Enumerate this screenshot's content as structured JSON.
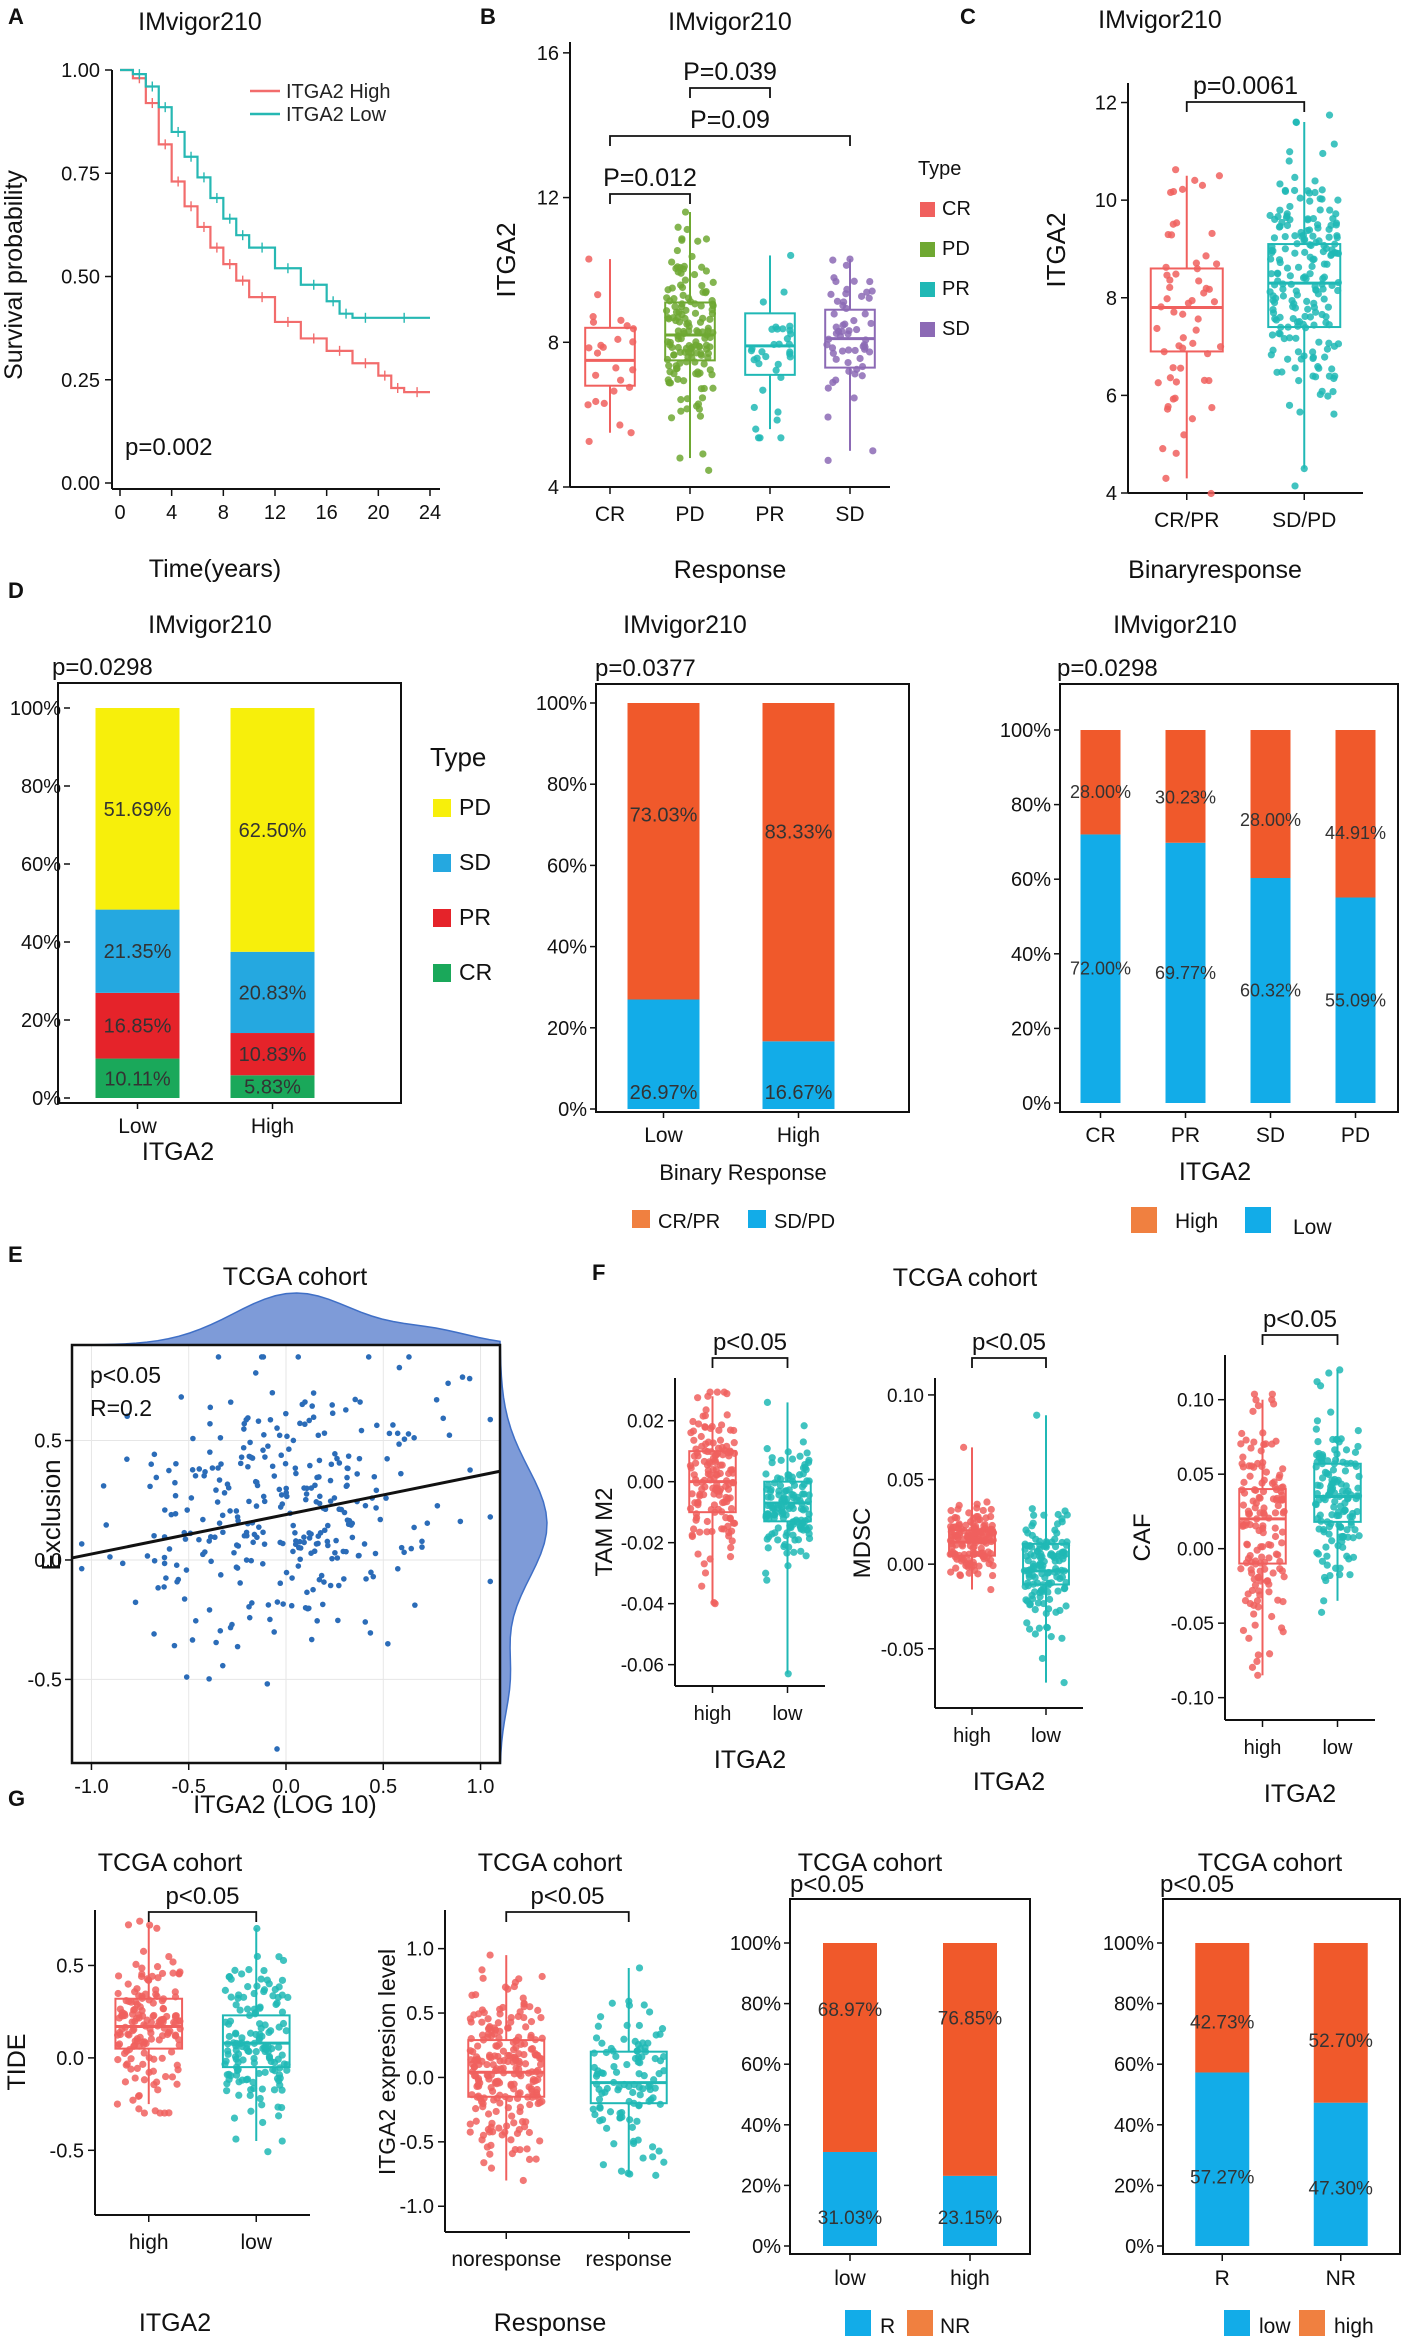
{
  "colors": {
    "red": "#f0605e",
    "teal": "#20b8b5",
    "green": "#6fa832",
    "purple": "#8c6ab5",
    "orange": "#f0592b",
    "blue": "#12ace8",
    "yellow": "#f7ef0b",
    "sdblue": "#25a8e0",
    "prred": "#e5232a",
    "crgreen": "#1aa85a",
    "legorange": "#f08040",
    "km_red": "#f26c6c",
    "km_teal": "#26b8b3"
  },
  "panels": {
    "A": "A",
    "B": "B",
    "C": "C",
    "D": "D",
    "E": "E",
    "F": "F",
    "G": "G"
  },
  "chart_data": [
    {
      "id": "A",
      "type": "line",
      "title": "IMvigor210",
      "xlabel": "Time(years)",
      "ylabel": "Survival probability",
      "xticks": [
        "0",
        "4",
        "8",
        "12",
        "16",
        "20",
        "24"
      ],
      "yticks": [
        "0.00",
        "0.25",
        "0.50",
        "0.75",
        "1.00"
      ],
      "xlim": [
        0,
        24
      ],
      "ylim": [
        0,
        1
      ],
      "annotation": "p=0.002",
      "series": [
        {
          "name": "ITGA2 High",
          "color": "red",
          "x": [
            0,
            1,
            2,
            3,
            4,
            5,
            6,
            7,
            8,
            9,
            10,
            12,
            14,
            16,
            18,
            20,
            21,
            22,
            24
          ],
          "y": [
            1.0,
            0.98,
            0.92,
            0.82,
            0.73,
            0.67,
            0.62,
            0.57,
            0.53,
            0.49,
            0.45,
            0.39,
            0.35,
            0.32,
            0.29,
            0.26,
            0.23,
            0.22,
            0.22
          ]
        },
        {
          "name": "ITGA2 Low",
          "color": "teal",
          "x": [
            0,
            1,
            2,
            3,
            4,
            5,
            6,
            7,
            8,
            9,
            10,
            12,
            14,
            16,
            17,
            18,
            20,
            24
          ],
          "y": [
            1.0,
            0.99,
            0.96,
            0.91,
            0.85,
            0.79,
            0.74,
            0.69,
            0.64,
            0.6,
            0.57,
            0.52,
            0.48,
            0.44,
            0.41,
            0.4,
            0.4,
            0.4
          ]
        }
      ]
    },
    {
      "id": "B",
      "type": "box",
      "title": "IMvigor210",
      "xlabel": "Response",
      "ylabel": "ITGA2",
      "legend_title": "Type",
      "categories": [
        "CR",
        "PD",
        "PR",
        "SD"
      ],
      "yticks": [
        "4",
        "8",
        "12",
        "16"
      ],
      "ylim": [
        4,
        16.3
      ],
      "boxes": [
        {
          "q1": 6.8,
          "med": 7.5,
          "q3": 8.4,
          "lo": 5.5,
          "hi": 10.3,
          "color": "red",
          "n": 25
        },
        {
          "q1": 7.5,
          "med": 8.2,
          "q3": 9.1,
          "lo": 4.8,
          "hi": 11.6,
          "color": "green",
          "n": 150
        },
        {
          "q1": 7.1,
          "med": 7.9,
          "q3": 8.8,
          "lo": 5.6,
          "hi": 10.4,
          "color": "teal",
          "n": 35
        },
        {
          "q1": 7.3,
          "med": 8.1,
          "q3": 8.9,
          "lo": 5.0,
          "hi": 10.3,
          "color": "purple",
          "n": 60
        }
      ],
      "pvals": [
        "P=0.012",
        "P=0.039",
        "P=0.09"
      ]
    },
    {
      "id": "C",
      "type": "box",
      "title": "IMvigor210",
      "xlabel": "Binaryresponse",
      "ylabel": "ITGA2",
      "categories": [
        "CR/PR",
        "SD/PD"
      ],
      "yticks": [
        "4",
        "6",
        "8",
        "10",
        "12"
      ],
      "ylim": [
        4,
        12.4
      ],
      "boxes": [
        {
          "q1": 6.9,
          "med": 7.8,
          "q3": 8.6,
          "lo": 4.3,
          "hi": 10.5,
          "color": "red",
          "n": 60
        },
        {
          "q1": 7.4,
          "med": 8.3,
          "q3": 9.1,
          "lo": 4.5,
          "hi": 11.6,
          "color": "teal",
          "n": 200
        }
      ],
      "pvals": [
        "p=0.0061"
      ]
    },
    {
      "id": "D1",
      "type": "bar",
      "title": "IMvigor210",
      "xlabel": "ITGA2",
      "pval": "p=0.0298",
      "legend_title": "Type",
      "categories": [
        "Low",
        "High"
      ],
      "yticks": [
        "0%",
        "20%",
        "40%",
        "60%",
        "80%",
        "100%"
      ],
      "series": [
        {
          "name": "CR",
          "color": "crgreen",
          "values": [
            10.11,
            5.83
          ]
        },
        {
          "name": "PR",
          "color": "prred",
          "values": [
            16.85,
            10.83
          ]
        },
        {
          "name": "SD",
          "color": "sdblue",
          "values": [
            21.35,
            20.83
          ]
        },
        {
          "name": "PD",
          "color": "yellow",
          "values": [
            51.69,
            62.5
          ]
        }
      ],
      "labels": [
        [
          "10.11%",
          "16.85%",
          "21.35%",
          "51.69%"
        ],
        [
          "5.83%",
          "10.83%",
          "20.83%",
          "62.50%"
        ]
      ],
      "legend": [
        "PD",
        "SD",
        "PR",
        "CR"
      ]
    },
    {
      "id": "D2",
      "type": "bar",
      "title": "IMvigor210",
      "xlabel": "Binary Response",
      "pval": "p=0.0377",
      "categories": [
        "Low",
        "High"
      ],
      "yticks": [
        "0%",
        "20%",
        "40%",
        "60%",
        "80%",
        "100%"
      ],
      "series": [
        {
          "name": "SD/PD",
          "color": "blue",
          "values": [
            26.97,
            16.67
          ]
        },
        {
          "name": "CR/PR",
          "color": "orange",
          "values": [
            73.03,
            83.33
          ]
        }
      ],
      "labels": [
        [
          "26.97%",
          "73.03%"
        ],
        [
          "16.67%",
          "83.33%"
        ]
      ],
      "legend": [
        "CR/PR",
        "SD/PD"
      ]
    },
    {
      "id": "D3",
      "type": "bar",
      "title": "IMvigor210",
      "xlabel": "ITGA2",
      "pval": "p=0.0298",
      "categories": [
        "CR",
        "PR",
        "SD",
        "PD"
      ],
      "yticks": [
        "0%",
        "20%",
        "40%",
        "60%",
        "80%",
        "100%"
      ],
      "series": [
        {
          "name": "Low",
          "color": "blue",
          "values": [
            72.0,
            69.77,
            60.32,
            55.09
          ]
        },
        {
          "name": "High",
          "color": "orange",
          "values": [
            28.0,
            30.23,
            28.0,
            44.91
          ]
        }
      ],
      "labels": [
        [
          "72.00%",
          "28.00%"
        ],
        [
          "69.77%",
          "30.23%"
        ],
        [
          "60.32%",
          "28.00%"
        ],
        [
          "55.09%",
          "44.91%"
        ]
      ],
      "legend": [
        "High",
        "Low"
      ]
    },
    {
      "id": "E",
      "type": "scatter",
      "title": "TCGA cohort",
      "xlabel": "ITGA2 (LOG 10)",
      "ylabel": "Exclusion",
      "xticks": [
        "-1.0",
        "-0.5",
        "0.0",
        "0.5",
        "1.0"
      ],
      "yticks": [
        "-0.5",
        "0.0",
        "0.5"
      ],
      "xlim": [
        -1.1,
        1.1
      ],
      "ylim": [
        -0.85,
        0.9
      ],
      "annotations": [
        "p<0.05",
        "R=0.2"
      ],
      "regression": {
        "slope": 0.165,
        "intercept": 0.19
      },
      "n_points": 330
    },
    {
      "id": "F",
      "type": "box",
      "title": "TCGA cohort",
      "xlabel": "ITGA2",
      "subplots": [
        {
          "ylabel": "TAM M2",
          "categories": [
            "high",
            "low"
          ],
          "yticks": [
            "-0.06",
            "-0.04",
            "-0.02",
            "0.00",
            "0.02"
          ],
          "ylim": [
            -0.067,
            0.034
          ],
          "boxes": [
            {
              "q1": -0.01,
              "med": 0.0,
              "q3": 0.01,
              "lo": -0.04,
              "hi": 0.028,
              "color": "red",
              "n": 150
            },
            {
              "q1": -0.013,
              "med": -0.007,
              "q3": 0.0,
              "lo": -0.063,
              "hi": 0.026,
              "color": "teal",
              "n": 140
            }
          ],
          "pval": "p<0.05"
        },
        {
          "ylabel": "MDSC",
          "categories": [
            "high",
            "low"
          ],
          "yticks": [
            "-0.05",
            "0.00",
            "0.05",
            "0.10"
          ],
          "ylim": [
            -0.085,
            0.11
          ],
          "boxes": [
            {
              "q1": 0.005,
              "med": 0.013,
              "q3": 0.02,
              "lo": -0.015,
              "hi": 0.069,
              "color": "red",
              "n": 150
            },
            {
              "q1": -0.012,
              "med": -0.004,
              "q3": 0.012,
              "lo": -0.07,
              "hi": 0.088,
              "color": "teal",
              "n": 140
            }
          ],
          "pval": "p<0.05"
        },
        {
          "ylabel": "CAF",
          "categories": [
            "high",
            "low"
          ],
          "yticks": [
            "-0.10",
            "-0.05",
            "0.00",
            "0.05",
            "0.10"
          ],
          "ylim": [
            -0.115,
            0.13
          ],
          "boxes": [
            {
              "q1": -0.01,
              "med": 0.02,
              "q3": 0.04,
              "lo": -0.085,
              "hi": 0.1,
              "color": "red",
              "n": 150
            },
            {
              "q1": 0.018,
              "med": 0.035,
              "q3": 0.057,
              "lo": -0.035,
              "hi": 0.12,
              "color": "teal",
              "n": 140
            }
          ],
          "pval": "p<0.05"
        }
      ]
    },
    {
      "id": "G1",
      "type": "box",
      "title": "TCGA cohort",
      "xlabel": "ITGA2",
      "ylabel": "TIDE",
      "categories": [
        "high",
        "low"
      ],
      "yticks": [
        "-0.5",
        "0.0",
        "0.5"
      ],
      "ylim": [
        -0.85,
        0.8
      ],
      "boxes": [
        {
          "q1": 0.05,
          "med": 0.17,
          "q3": 0.32,
          "lo": -0.25,
          "hi": 0.72,
          "color": "red",
          "n": 160
        },
        {
          "q1": -0.05,
          "med": 0.08,
          "q3": 0.23,
          "lo": -0.45,
          "hi": 0.7,
          "color": "teal",
          "n": 150
        }
      ],
      "pval": "p<0.05"
    },
    {
      "id": "G2",
      "type": "box",
      "title": "TCGA cohort",
      "xlabel": "Response",
      "ylabel": "ITGA2 expresion level",
      "categories": [
        "noresponse",
        "response"
      ],
      "yticks": [
        "-1.0",
        "-0.5",
        "0.0",
        "0.5",
        "1.0"
      ],
      "ylim": [
        -1.2,
        1.3
      ],
      "boxes": [
        {
          "q1": -0.15,
          "med": 0.04,
          "q3": 0.29,
          "lo": -0.8,
          "hi": 0.95,
          "color": "red",
          "n": 230
        },
        {
          "q1": -0.2,
          "med": -0.04,
          "q3": 0.2,
          "lo": -0.75,
          "hi": 0.85,
          "color": "teal",
          "n": 110
        }
      ],
      "pval": "p<0.05"
    },
    {
      "id": "G3",
      "type": "bar",
      "title": "TCGA cohort",
      "pval": "p<0.05",
      "categories": [
        "low",
        "high"
      ],
      "yticks": [
        "0%",
        "20%",
        "40%",
        "60%",
        "80%",
        "100%"
      ],
      "series": [
        {
          "name": "R",
          "color": "blue",
          "values": [
            31.03,
            23.15
          ]
        },
        {
          "name": "NR",
          "color": "orange",
          "values": [
            68.97,
            76.85
          ]
        }
      ],
      "labels": [
        [
          "31.03%",
          "68.97%"
        ],
        [
          "23.15%",
          "76.85%"
        ]
      ],
      "legend": [
        "R",
        "NR"
      ]
    },
    {
      "id": "G4",
      "type": "bar",
      "title": "TCGA cohort",
      "pval": "p<0.05",
      "categories": [
        "R",
        "NR"
      ],
      "yticks": [
        "0%",
        "20%",
        "40%",
        "60%",
        "80%",
        "100%"
      ],
      "series": [
        {
          "name": "low",
          "color": "blue",
          "values": [
            57.27,
            47.3
          ]
        },
        {
          "name": "high",
          "color": "orange",
          "values": [
            42.73,
            52.7
          ]
        }
      ],
      "labels": [
        [
          "57.27%",
          "42.73%"
        ],
        [
          "47.30%",
          "52.70%"
        ]
      ],
      "legend": [
        "low",
        "high"
      ]
    }
  ]
}
